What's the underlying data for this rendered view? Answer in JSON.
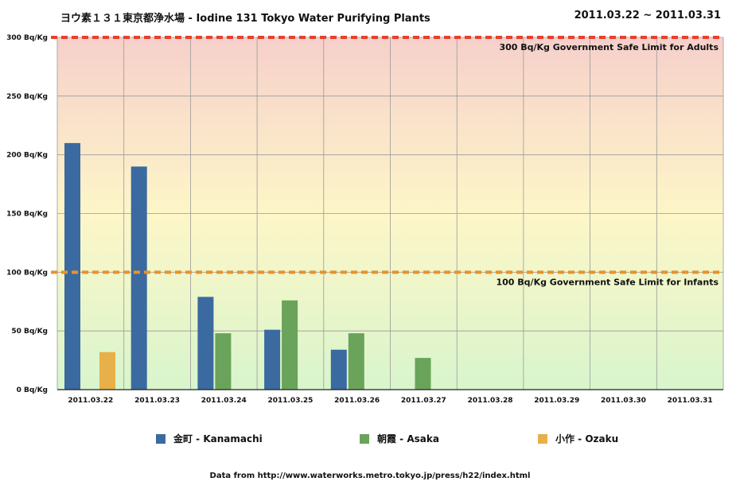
{
  "header": {
    "title": "ヨウ素１３１東京都浄水場 - Iodine 131 Tokyo Water Purifying Plants",
    "date_range": "2011.03.22 ~ 2011.03.31"
  },
  "footer": {
    "source": "Data from http://www.waterworks.metro.tokyo.jp/press/h22/index.html"
  },
  "chart_data": {
    "type": "bar",
    "title": "ヨウ素１３１東京都浄水場 - Iodine 131 Tokyo Water Purifying Plants",
    "xlabel": "",
    "ylabel": "",
    "ylim": [
      0,
      300
    ],
    "y_ticks": [
      "0 Bq/Kg",
      "50 Bq/Kg",
      "100 Bq/Kg",
      "150 Bq/Kg",
      "200 Bq/Kg",
      "250 Bq/Kg",
      "300 Bq/Kg"
    ],
    "y_tick_values": [
      0,
      50,
      100,
      150,
      200,
      250,
      300
    ],
    "categories": [
      "2011.03.22",
      "2011.03.23",
      "2011.03.24",
      "2011.03.25",
      "2011.03.26",
      "2011.03.27",
      "2011.03.28",
      "2011.03.29",
      "2011.03.30",
      "2011.03.31"
    ],
    "series": [
      {
        "name": "金町 - Kanamachi",
        "color": "#3b6aa0",
        "values": [
          210,
          190,
          79,
          51,
          34,
          null,
          null,
          null,
          null,
          null
        ]
      },
      {
        "name": "朝霞 - Asaka",
        "color": "#6aa35a",
        "values": [
          null,
          null,
          48,
          76,
          48,
          27,
          null,
          null,
          null,
          null
        ]
      },
      {
        "name": "小作 - Ozaku",
        "color": "#e8b04a",
        "values": [
          32,
          null,
          null,
          null,
          null,
          null,
          null,
          null,
          null,
          null
        ]
      }
    ],
    "limits": [
      {
        "value": 300,
        "label": "300 Bq/Kg Government Safe Limit for Adults",
        "color": "#e8402a"
      },
      {
        "value": 100,
        "label": "100 Bq/Kg Government Safe Limit for Infants",
        "color": "#e8922a"
      }
    ],
    "background": {
      "top": "#f6d0cb",
      "middle": "#fdf6c8",
      "bottom": "#d8f5cc"
    },
    "grid": true,
    "legend_position": "bottom"
  }
}
